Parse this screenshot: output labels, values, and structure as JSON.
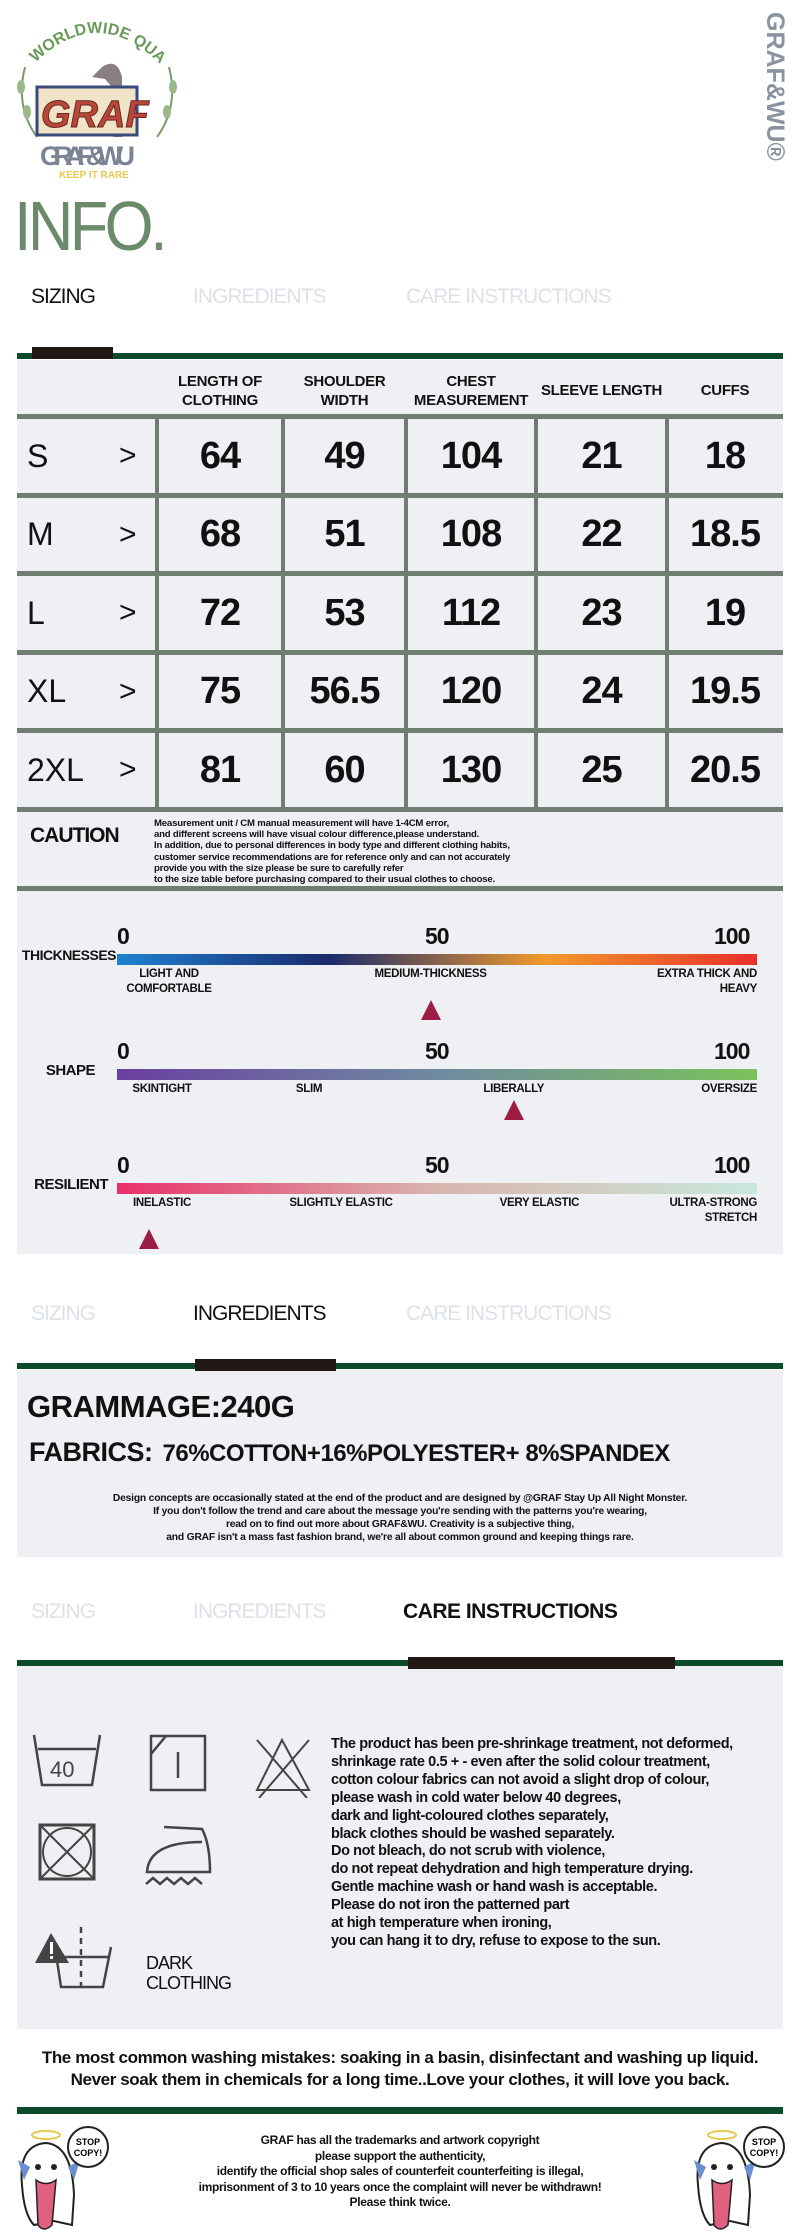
{
  "brand": {
    "logo_text_top": "WORLDWIDE QUALITY",
    "logo_text_main": "GRAF",
    "logo_text_name": "GRAF&WU",
    "logo_tagline": "KEEP IT RARE",
    "side_mark": "GRAF&WU®"
  },
  "page_title": "INFO.",
  "tabs": [
    "SIZING",
    "INGREDIENTS",
    "CARE INSTRUCTIONS"
  ],
  "sizing": {
    "columns": [
      "LENGTH OF CLOTHING",
      "SHOULDER WIDTH",
      "CHEST MEASUREMENT",
      "SLEEVE LENGTH",
      "CUFFS"
    ],
    "arrow": ">",
    "rows": [
      {
        "size": "S",
        "values": [
          "64",
          "49",
          "104",
          "21",
          "18"
        ]
      },
      {
        "size": "M",
        "values": [
          "68",
          "51",
          "108",
          "22",
          "18.5"
        ]
      },
      {
        "size": "L",
        "values": [
          "72",
          "53",
          "112",
          "23",
          "19"
        ]
      },
      {
        "size": "XL",
        "values": [
          "75",
          "56.5",
          "120",
          "24",
          "19.5"
        ]
      },
      {
        "size": "2XL",
        "values": [
          "81",
          "60",
          "130",
          "25",
          "20.5"
        ]
      }
    ],
    "caution_title": "CAUTION",
    "caution_lines": [
      "Measurement unit / CM manual measurement will have 1-4CM error,",
      "and different screens will have visual colour difference,please understand.",
      "In addition, due to personal differences in body type and different clothing habits,",
      "customer service recommendations are for reference only and can not accurately",
      "provide you with the size please be sure to carefully refer",
      "to the size table before purchasing compared to their usual clothes to choose."
    ]
  },
  "gauges": [
    {
      "label": "THICKNESSES",
      "scale": [
        "0",
        "50",
        "100"
      ],
      "value_percent": 49,
      "colors": [
        "#1e82d2",
        "#1a2a6c",
        "#f39a2c",
        "#e8302a"
      ],
      "marks": [
        "LIGHT AND COMFORTABLE",
        "MEDIUM-THICKNESS",
        "EXTRA THICK AND HEAVY"
      ]
    },
    {
      "label": "SHAPE",
      "scale": [
        "0",
        "50",
        "100"
      ],
      "value_percent": 62,
      "colors": [
        "#6a3fa0",
        "#6f8aa0",
        "#7bc25b"
      ],
      "marks": [
        "SKINTIGHT",
        "SLIM",
        "LIBERALLY",
        "OVERSIZE"
      ]
    },
    {
      "label": "RESILIENT",
      "scale": [
        "0",
        "50",
        "100"
      ],
      "value_percent": 5,
      "colors": [
        "#e8306a",
        "#d9b5ae",
        "#c8e8dc"
      ],
      "marks": [
        "INELASTIC",
        "SLIGHTLY ELASTIC",
        "VERY ELASTIC",
        "ULTRA-STRONG STRETCH"
      ]
    }
  ],
  "ingredients": {
    "grammage_label": "GRAMMAGE:",
    "grammage_value": "240G",
    "fabrics_label": "FABRICS:",
    "fabrics_value": "76%COTTON+16%POLYESTER+ 8%SPANDEX",
    "note_lines": [
      "Design concepts are occasionally stated at the end of the product and are designed by @GRAF Stay Up All Night Monster.",
      "If you don't follow the trend and care about the message you're sending with the patterns you're wearing,",
      "read on to find out more about GRAF&WU. Creativity is a subjective thing,",
      "and GRAF isn't a mass fast fashion brand, we're all about common ground and keeping things rare."
    ]
  },
  "care": {
    "icons": [
      "wash-40-icon",
      "line-dry-icon",
      "no-bleach-icon",
      "no-tumble-dry-icon",
      "iron-steam-icon",
      "wash-dark-separately-icon"
    ],
    "wash_temp": "40",
    "dark_label": "DARK CLOTHING",
    "lines": [
      "The product has been pre-shrinkage treatment, not deformed,",
      "shrinkage rate 0.5 + - even after the solid colour treatment,",
      "cotton colour fabrics can not avoid a slight drop of colour,",
      "please wash in cold water below 40 degrees,",
      "dark and light-coloured clothes separately,",
      "black clothes should be washed separately.",
      "Do not bleach, do not scrub with violence,",
      "do not repeat dehydration and high temperature drying.",
      "Gentle machine wash or hand wash is acceptable.",
      "Please do not iron the patterned part",
      "at high temperature when ironing,",
      "you can hang it to dry, refuse to expose to the sun."
    ],
    "mistakes_lines": [
      "The most common washing mistakes: soaking in a basin, disinfectant and washing up liquid.",
      "Never soak them in chemicals for a long time..Love your clothes, it will love you back."
    ]
  },
  "footer": {
    "sticker_text": "STOP COPY!",
    "lines": [
      "GRAF has all the trademarks and artwork copyright",
      "please support the authenticity,",
      "identify the official shop sales of counterfeit counterfeiting is illegal,",
      "imprisonment of 3 to 10 years once the complaint will never be withdrawn!",
      "Please think twice."
    ]
  },
  "colors": {
    "accent_green": "#0b4a2a",
    "title_green": "#6a8a6a",
    "panel_bg": "#eef0f4",
    "tab_indicator": "#231815",
    "marker": "#9c1d45",
    "grid": "#6f7d72"
  }
}
